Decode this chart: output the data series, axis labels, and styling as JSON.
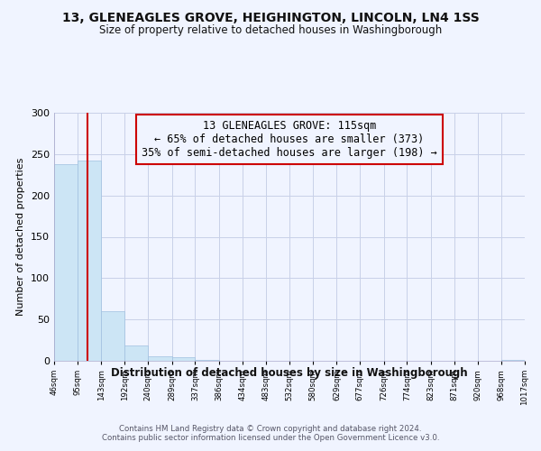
{
  "title": "13, GLENEAGLES GROVE, HEIGHINGTON, LINCOLN, LN4 1SS",
  "subtitle": "Size of property relative to detached houses in Washingborough",
  "xlabel": "Distribution of detached houses by size in Washingborough",
  "ylabel": "Number of detached properties",
  "bin_edges": [
    46,
    95,
    143,
    192,
    240,
    289,
    337,
    386,
    434,
    483,
    532,
    580,
    629,
    677,
    726,
    774,
    823,
    871,
    920,
    968,
    1017
  ],
  "bin_counts": [
    238,
    242,
    60,
    19,
    6,
    4,
    1,
    0,
    0,
    0,
    0,
    0,
    0,
    0,
    0,
    0,
    0,
    0,
    0,
    1
  ],
  "bar_color": "#cce5f5",
  "property_size": 115,
  "marker_line_color": "#cc0000",
  "annotation_box_edge_color": "#cc0000",
  "annotation_text": "13 GLENEAGLES GROVE: 115sqm\n← 65% of detached houses are smaller (373)\n35% of semi-detached houses are larger (198) →",
  "ylim": [
    0,
    300
  ],
  "yticks": [
    0,
    50,
    100,
    150,
    200,
    250,
    300
  ],
  "tick_labels": [
    "46sqm",
    "95sqm",
    "143sqm",
    "192sqm",
    "240sqm",
    "289sqm",
    "337sqm",
    "386sqm",
    "434sqm",
    "483sqm",
    "532sqm",
    "580sqm",
    "629sqm",
    "677sqm",
    "726sqm",
    "774sqm",
    "823sqm",
    "871sqm",
    "920sqm",
    "968sqm",
    "1017sqm"
  ],
  "footer": "Contains HM Land Registry data © Crown copyright and database right 2024.\nContains public sector information licensed under the Open Government Licence v3.0.",
  "bg_color": "#f0f4ff",
  "grid_color": "#c8d0e8"
}
